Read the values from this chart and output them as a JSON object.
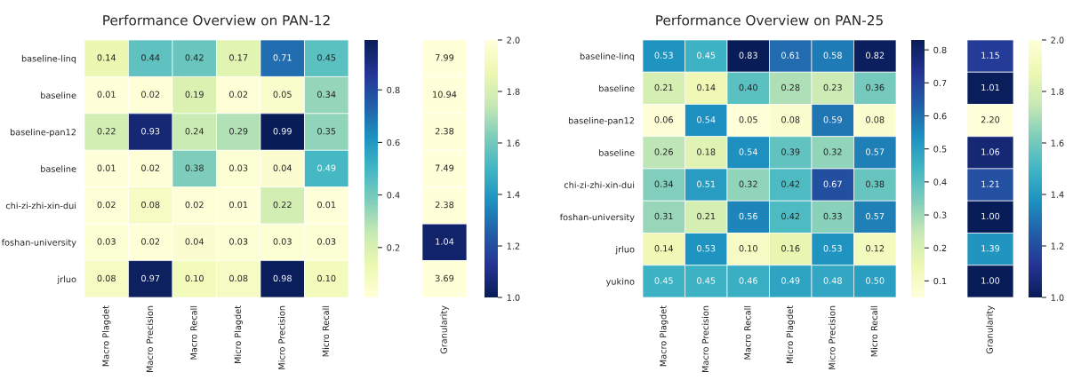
{
  "chart_data": [
    {
      "type": "heatmap",
      "title": "Performance Overview on PAN-12",
      "categories": [
        "Macro Plagdet",
        "Macro Precision",
        "Macro Recall",
        "Micro Plagdet",
        "Micro Precision",
        "Micro Recall"
      ],
      "y_categories": [
        "baseline-linq",
        "baseline",
        "baseline-pan12",
        "baseline",
        "chi-zi-zhi-xin-dui",
        "foshan-university",
        "jrluo"
      ],
      "cells": [
        [
          0.14,
          0.44,
          0.42,
          0.17,
          0.71,
          0.45
        ],
        [
          0.01,
          0.02,
          0.19,
          0.02,
          0.05,
          0.34
        ],
        [
          0.22,
          0.93,
          0.24,
          0.29,
          0.99,
          0.35
        ],
        [
          0.01,
          0.02,
          0.38,
          0.03,
          0.04,
          0.49
        ],
        [
          0.02,
          0.08,
          0.02,
          0.01,
          0.22,
          0.01
        ],
        [
          0.03,
          0.02,
          0.04,
          0.03,
          0.03,
          0.03
        ],
        [
          0.08,
          0.97,
          0.1,
          0.08,
          0.98,
          0.1
        ]
      ],
      "cell_labels": [
        [
          "0.14",
          "0.44",
          "0.42",
          "0.17",
          "0.71",
          "0.45"
        ],
        [
          "0.01",
          "0.02",
          "0.19",
          "0.02",
          "0.05",
          "0.34"
        ],
        [
          "0.22",
          "0.93",
          "0.24",
          "0.29",
          "0.99",
          "0.35"
        ],
        [
          "0.01",
          "0.02",
          "0.38",
          "0.03",
          "0.04",
          "0.49"
        ],
        [
          "0.02",
          "0.08",
          "0.02",
          "0.01",
          "0.22",
          "0.01"
        ],
        [
          "0.03",
          "0.02",
          "0.04",
          "0.03",
          "0.03",
          "0.03"
        ],
        [
          "0.08",
          "0.97",
          "0.10",
          "0.08",
          "0.98",
          "0.10"
        ]
      ],
      "clim": [
        0.01,
        0.99
      ],
      "cticks": [
        {
          "value": 0.2,
          "label": "0.2"
        },
        {
          "value": 0.4,
          "label": "0.4"
        },
        {
          "value": 0.6,
          "label": "0.6"
        },
        {
          "value": 0.8,
          "label": "0.8"
        }
      ],
      "colors": [
        "#ffffd9",
        "#edf8b1",
        "#c7e9b4",
        "#7fcdbb",
        "#41b6c4",
        "#1d91c0",
        "#225ea8",
        "#253494",
        "#081d58"
      ]
    },
    {
      "type": "heatmap",
      "categories": [
        "Granularity"
      ],
      "y_categories": [
        null,
        null,
        null,
        null,
        null,
        null,
        null
      ],
      "cells": [
        [
          7.99
        ],
        [
          10.94
        ],
        [
          2.38
        ],
        [
          7.49
        ],
        [
          2.38
        ],
        [
          1.04
        ],
        [
          3.69
        ]
      ],
      "cell_labels": [
        [
          "7.99"
        ],
        [
          "10.94"
        ],
        [
          "2.38"
        ],
        [
          "7.49"
        ],
        [
          "2.38"
        ],
        [
          "1.04"
        ],
        [
          "3.69"
        ]
      ],
      "clim": [
        1.0,
        2.0
      ],
      "cticks": [
        {
          "value": 1.0,
          "label": "1.0"
        },
        {
          "value": 1.2,
          "label": "1.2"
        },
        {
          "value": 1.4,
          "label": "1.4"
        },
        {
          "value": 1.6,
          "label": "1.6"
        },
        {
          "value": 1.8,
          "label": "1.8"
        },
        {
          "value": 2.0,
          "label": "2.0"
        }
      ],
      "colors": [
        "#081d58",
        "#253494",
        "#225ea8",
        "#1d91c0",
        "#41b6c4",
        "#7fcdbb",
        "#c7e9b4",
        "#edf8b1",
        "#ffffd9"
      ]
    },
    {
      "type": "heatmap",
      "title": "Performance Overview on PAN-25",
      "categories": [
        "Macro Plagdet",
        "Macro Precision",
        "Macro Recall",
        "Micro Plagdet",
        "Micro Precision",
        "Micro Recall"
      ],
      "y_categories": [
        "baseline-linq",
        "baseline",
        "baseline-pan12",
        "baseline",
        "chi-zi-zhi-xin-dui",
        "foshan-university",
        "jrluo",
        "yukino"
      ],
      "cells": [
        [
          0.53,
          0.45,
          0.83,
          0.61,
          0.58,
          0.82
        ],
        [
          0.21,
          0.14,
          0.4,
          0.28,
          0.23,
          0.36
        ],
        [
          0.06,
          0.54,
          0.05,
          0.08,
          0.59,
          0.08
        ],
        [
          0.26,
          0.18,
          0.54,
          0.39,
          0.32,
          0.57
        ],
        [
          0.34,
          0.51,
          0.32,
          0.42,
          0.67,
          0.38
        ],
        [
          0.31,
          0.21,
          0.56,
          0.42,
          0.33,
          0.57
        ],
        [
          0.14,
          0.53,
          0.1,
          0.16,
          0.53,
          0.12
        ],
        [
          0.45,
          0.45,
          0.46,
          0.49,
          0.48,
          0.5
        ]
      ],
      "cell_labels": [
        [
          "0.53",
          "0.45",
          "0.83",
          "0.61",
          "0.58",
          "0.82"
        ],
        [
          "0.21",
          "0.14",
          "0.40",
          "0.28",
          "0.23",
          "0.36"
        ],
        [
          "0.06",
          "0.54",
          "0.05",
          "0.08",
          "0.59",
          "0.08"
        ],
        [
          "0.26",
          "0.18",
          "0.54",
          "0.39",
          "0.32",
          "0.57"
        ],
        [
          "0.34",
          "0.51",
          "0.32",
          "0.42",
          "0.67",
          "0.38"
        ],
        [
          "0.31",
          "0.21",
          "0.56",
          "0.42",
          "0.33",
          "0.57"
        ],
        [
          "0.14",
          "0.53",
          "0.10",
          "0.16",
          "0.53",
          "0.12"
        ],
        [
          "0.45",
          "0.45",
          "0.46",
          "0.49",
          "0.48",
          "0.50"
        ]
      ],
      "clim": [
        0.05,
        0.83
      ],
      "cticks": [
        {
          "value": 0.1,
          "label": "0.1"
        },
        {
          "value": 0.2,
          "label": "0.2"
        },
        {
          "value": 0.3,
          "label": "0.3"
        },
        {
          "value": 0.4,
          "label": "0.4"
        },
        {
          "value": 0.5,
          "label": "0.5"
        },
        {
          "value": 0.6,
          "label": "0.6"
        },
        {
          "value": 0.7,
          "label": "0.7"
        },
        {
          "value": 0.8,
          "label": "0.8"
        }
      ],
      "colors": [
        "#ffffd9",
        "#edf8b1",
        "#c7e9b4",
        "#7fcdbb",
        "#41b6c4",
        "#1d91c0",
        "#225ea8",
        "#253494",
        "#081d58"
      ]
    },
    {
      "type": "heatmap",
      "categories": [
        "Granularity"
      ],
      "y_categories": [
        null,
        null,
        null,
        null,
        null,
        null,
        null,
        null
      ],
      "cells": [
        [
          1.15
        ],
        [
          1.01
        ],
        [
          2.2
        ],
        [
          1.06
        ],
        [
          1.21
        ],
        [
          1.0
        ],
        [
          1.39
        ],
        [
          1.0
        ]
      ],
      "cell_labels": [
        [
          "1.15"
        ],
        [
          "1.01"
        ],
        [
          "2.20"
        ],
        [
          "1.06"
        ],
        [
          "1.21"
        ],
        [
          "1.00"
        ],
        [
          "1.39"
        ],
        [
          "1.00"
        ]
      ],
      "clim": [
        1.0,
        2.0
      ],
      "cticks": [
        {
          "value": 1.0,
          "label": "1.0"
        },
        {
          "value": 1.2,
          "label": "1.2"
        },
        {
          "value": 1.4,
          "label": "1.4"
        },
        {
          "value": 1.6,
          "label": "1.6"
        },
        {
          "value": 1.8,
          "label": "1.8"
        },
        {
          "value": 2.0,
          "label": "2.0"
        }
      ],
      "colors": [
        "#081d58",
        "#253494",
        "#225ea8",
        "#1d91c0",
        "#41b6c4",
        "#7fcdbb",
        "#c7e9b4",
        "#edf8b1",
        "#ffffd9"
      ]
    }
  ]
}
